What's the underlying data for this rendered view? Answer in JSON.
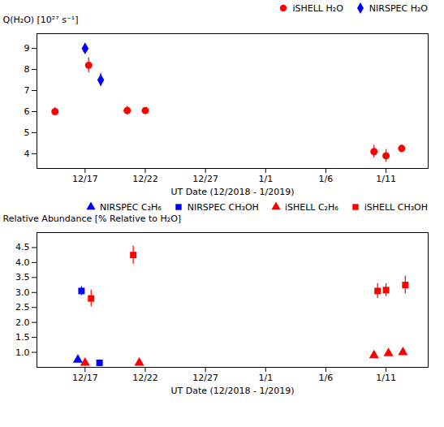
{
  "chart_data": [
    {
      "type": "scatter",
      "xlabel": "UT Date (12/2018 - 1/2019)",
      "ylabel": "Q(H₂O) [10²⁷ s⁻¹]",
      "xlim": [
        13.0,
        45.5
      ],
      "xticks": [
        {
          "value": 17.0,
          "label": "12/17"
        },
        {
          "value": 22.0,
          "label": "12/22"
        },
        {
          "value": 27.0,
          "label": "12/27"
        },
        {
          "value": 32.0,
          "label": "1/1"
        },
        {
          "value": 37.0,
          "label": "1/6"
        },
        {
          "value": 42.0,
          "label": "1/11"
        }
      ],
      "ylim": [
        3.3,
        9.7
      ],
      "yticks": [
        4,
        5,
        6,
        7,
        8,
        9
      ],
      "grid": false,
      "legend": "upper right",
      "series": [
        {
          "name": "iSHELL H₂O",
          "color": "#FF0000",
          "marker": "circle",
          "x": [
            14.5,
            17.3,
            20.5,
            22.0,
            41.0,
            42.0,
            43.3
          ],
          "values": [
            6.0,
            8.2,
            6.05,
            6.05,
            4.1,
            3.9,
            4.25
          ],
          "yerr": [
            0.2,
            0.35,
            0.2,
            0.1,
            0.3,
            0.3,
            0.15
          ]
        },
        {
          "name": "NIRSPEC H₂O",
          "color": "#0000FF",
          "marker": "diamond",
          "x": [
            17.0,
            18.3
          ],
          "values": [
            9.0,
            7.5
          ],
          "yerr": [
            0.15,
            0.3
          ]
        }
      ]
    },
    {
      "type": "scatter",
      "xlabel": "UT Date (12/2018 - 1/2019)",
      "ylabel": "Relative Abundance [% Relative to H₂O]",
      "xlim": [
        13.0,
        45.5
      ],
      "xticks": [
        {
          "value": 17.0,
          "label": "12/17"
        },
        {
          "value": 22.0,
          "label": "12/22"
        },
        {
          "value": 27.0,
          "label": "12/27"
        },
        {
          "value": 32.0,
          "label": "1/1"
        },
        {
          "value": 37.0,
          "label": "1/6"
        },
        {
          "value": 42.0,
          "label": "1/11"
        }
      ],
      "ylim": [
        0.5,
        5.0
      ],
      "yticks": [
        {
          "value": 1.0,
          "label": "1.0"
        },
        1.5,
        {
          "value": 2.0,
          "label": "2.0"
        },
        2.5,
        {
          "value": 3.0,
          "label": "3.0"
        },
        3.5,
        {
          "value": 4.0,
          "label": "4.0"
        },
        4.5
      ],
      "grid": false,
      "legend": "upper right",
      "series": [
        {
          "name": "NIRSPEC C₂H₆",
          "color": "#0000FF",
          "marker": "triangle",
          "x": [
            16.4
          ],
          "values": [
            0.75
          ],
          "yerr": [
            0.05
          ]
        },
        {
          "name": "NIRSPEC CH₃OH",
          "color": "#0000FF",
          "marker": "square",
          "x": [
            16.7,
            18.2
          ],
          "values": [
            3.05,
            0.65
          ],
          "yerr": [
            0.15,
            0.1
          ]
        },
        {
          "name": "iSHELL C₂H₆",
          "color": "#FF0000",
          "marker": "triangle",
          "x": [
            17.0,
            21.5,
            41.0,
            42.2,
            43.4
          ],
          "values": [
            0.65,
            0.65,
            0.9,
            0.97,
            1.0
          ],
          "yerr": [
            0.1,
            0.1,
            0.1,
            0.07,
            0.05
          ]
        },
        {
          "name": "iSHELL CH₃OH",
          "color": "#FF0000",
          "marker": "square",
          "x": [
            17.5,
            21.0,
            41.3,
            42.0,
            43.6
          ],
          "values": [
            2.8,
            4.25,
            3.05,
            3.08,
            3.25
          ],
          "yerr": [
            0.28,
            0.3,
            0.25,
            0.22,
            0.3
          ]
        }
      ]
    }
  ]
}
